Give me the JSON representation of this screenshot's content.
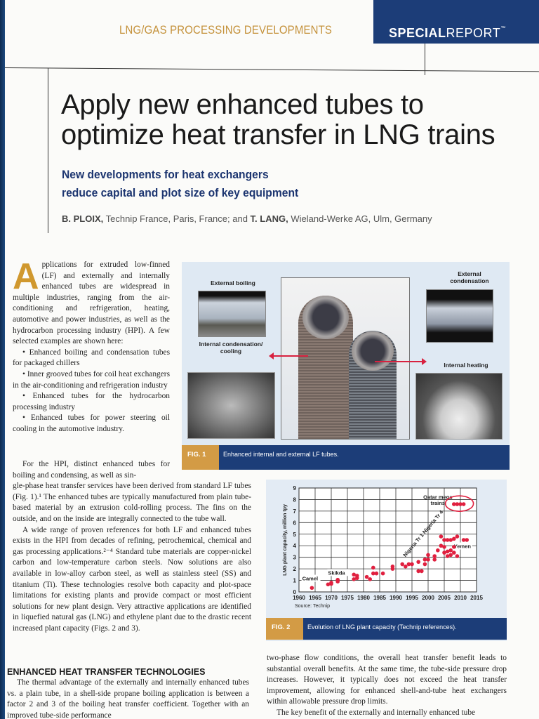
{
  "header": {
    "kicker": "LNG/GAS PROCESSING DEVELOPMENTS",
    "special_bold": "SPECIAL",
    "special_regular": "REPORT",
    "colors": {
      "kicker": "#c4913a",
      "special_box": "#1c3d78"
    }
  },
  "article": {
    "title_line1": "Apply new enhanced tubes to",
    "title_line2": "optimize heat transfer in LNG trains",
    "deck_line1": "New developments for heat exchangers",
    "deck_line2": "reduce capital and plot size of key equipment",
    "byline": {
      "author1": "B. PLOIX,",
      "affil1": " Technip France, Paris, France; and ",
      "author2": "T. LANG,",
      "affil2": " Wieland-Werke AG, Ulm, Germany"
    },
    "dropcap": "A",
    "intro": "pplications for extruded low-finned (LF) and externally and internally enhanced tubes are widespread in multiple industries, ranging from the air-conditioning and refrigeration, heating, automotive and power industries, as well as the hydrocarbon processing industry (HPI). A few selected examples are shown here:",
    "bullets": [
      "• Enhanced boiling and condensation tubes for packaged chillers",
      "• Inner grooved tubes for coil heat exchangers in the air-conditioning and refrigeration industry",
      "• Enhanced tubes for the hydrocarbon processing industry",
      "• Enhanced tubes for power steering oil cooling in the automotive industry."
    ],
    "para_hpi_narrow": "For the HPI, distinct enhanced tubes for boiling and condensing, as well as sin-",
    "para_hpi_wide": "gle-phase heat transfer services have been derived from standard LF tubes (Fig. 1).¹ The enhanced tubes are typically manufactured from plain tube-based material by an extrusion cold-rolling process. The fins on the outside, and on the inside are integrally connected to the tube wall.",
    "para_range": "A wide range of proven references for both LF and enhanced tubes exists in the HPI from decades of refining, petrochemical, chemical and gas processing applications.²⁻⁴ Standard tube materials are copper-nickel carbon and low-temperature carbon steels. Now solutions are also available in low-alloy carbon steel, as well as stainless steel (SS) and titanium (Ti). These technologies resolve both capacity and plot-space limitations for existing plants and provide compact or most efficient solutions for new plant design. Very attractive applications are identified in liquefied natural gas (LNG) and ethylene plant due to the drastic recent increased plant capacity (Figs. 2 and 3).",
    "section_heading": "ENHANCED HEAT TRANSFER TECHNOLOGIES",
    "para_thermal": "The thermal advantage of the externally and internally enhanced tubes vs. a plain tube, in a shell-side propane boiling application is between a factor 2 and 3 of the boiling heat transfer coefficient. Together with an improved tube-side performance",
    "col2_para": "two-phase flow conditions, the overall heat transfer benefit leads to substantial overall benefits. At the same time, the tube-side pressure drop increases. However, it typically does not exceed the heat transfer improvement, allowing for enhanced shell-and-tube heat exchangers within allowable pressure drop limits.",
    "col2_para2": "The key benefit of the externally and internally enhanced tube"
  },
  "figure1": {
    "label_external_boiling": "External boiling",
    "label_external_condensation": "External condensation",
    "label_internal_condensation": "Internal condensation/ cooling",
    "label_internal_heating": "Internal heating",
    "fig_num": "FIG. 1",
    "caption": "Enhanced internal and external LF tubes."
  },
  "figure2": {
    "fig_num": "FIG. 2",
    "caption": "Evolution of LNG plant capacity (Technip references).",
    "source": "Source: Technip"
  },
  "chart_data": {
    "type": "scatter",
    "title": "Evolution of LNG plant capacity (Technip references)",
    "xlabel": "",
    "ylabel": "LNG plant capacity, million tpy",
    "xlim": [
      1960,
      2015
    ],
    "ylim": [
      0,
      9
    ],
    "x_ticks": [
      1960,
      1965,
      1970,
      1975,
      1980,
      1985,
      1990,
      1995,
      2000,
      2005,
      2010,
      2015
    ],
    "y_ticks": [
      0,
      1,
      2,
      3,
      4,
      5,
      6,
      7,
      8,
      9
    ],
    "grid": true,
    "series": [
      {
        "name": "Technip LNG references",
        "color": "#e0203f",
        "points": [
          [
            1964,
            0.35
          ],
          [
            1969,
            0.65
          ],
          [
            1970,
            0.7
          ],
          [
            1970,
            0.8
          ],
          [
            1972,
            0.9
          ],
          [
            1972,
            1.05
          ],
          [
            1977,
            1.1
          ],
          [
            1977,
            1.5
          ],
          [
            1978,
            1.2
          ],
          [
            1978,
            1.4
          ],
          [
            1981,
            1.3
          ],
          [
            1982,
            1.1
          ],
          [
            1983,
            1.6
          ],
          [
            1983,
            2.1
          ],
          [
            1984,
            1.6
          ],
          [
            1986,
            1.6
          ],
          [
            1989,
            2.0
          ],
          [
            1989,
            2.2
          ],
          [
            1992,
            2.4
          ],
          [
            1993,
            2.2
          ],
          [
            1994,
            2.4
          ],
          [
            1995,
            2.4
          ],
          [
            1997,
            2.6
          ],
          [
            1997,
            1.8
          ],
          [
            1998,
            1.8
          ],
          [
            1999,
            2.4
          ],
          [
            1999,
            2.8
          ],
          [
            2000,
            2.8
          ],
          [
            2000,
            3.2
          ],
          [
            2002,
            2.8
          ],
          [
            2002,
            3.1
          ],
          [
            2003,
            3.6
          ],
          [
            2004,
            4.0
          ],
          [
            2004,
            4.8
          ],
          [
            2005,
            4.5
          ],
          [
            2005,
            3.4
          ],
          [
            2005,
            3.9
          ],
          [
            2006,
            4.5
          ],
          [
            2006,
            3.5
          ],
          [
            2006,
            3.1
          ],
          [
            2007,
            4.5
          ],
          [
            2007,
            3.2
          ],
          [
            2007,
            3.6
          ],
          [
            2008,
            4.6
          ],
          [
            2008,
            3.9
          ],
          [
            2008,
            3.4
          ],
          [
            2009,
            4.8
          ],
          [
            2009,
            3.1
          ],
          [
            2011,
            4.5
          ],
          [
            2012,
            4.5
          ],
          [
            2008,
            7.6
          ],
          [
            2009,
            7.6
          ],
          [
            2010,
            7.6
          ],
          [
            2011,
            7.6
          ]
        ]
      }
    ],
    "annotations": [
      {
        "text": "Camel",
        "x": 1961,
        "y": 1.0
      },
      {
        "text": "Skikda",
        "x": 1969,
        "y": 1.5
      },
      {
        "text": "Nigeria Tr 1",
        "x": 1993,
        "y": 3.0
      },
      {
        "text": "Nigeria Tr 4",
        "x": 1999,
        "y": 5.0
      },
      {
        "text": "Yemen",
        "x": 2008,
        "y": 3.8
      },
      {
        "text": "Qatar mega trains",
        "x": 2000,
        "y": 7.8
      }
    ],
    "source": "Source: Technip"
  }
}
